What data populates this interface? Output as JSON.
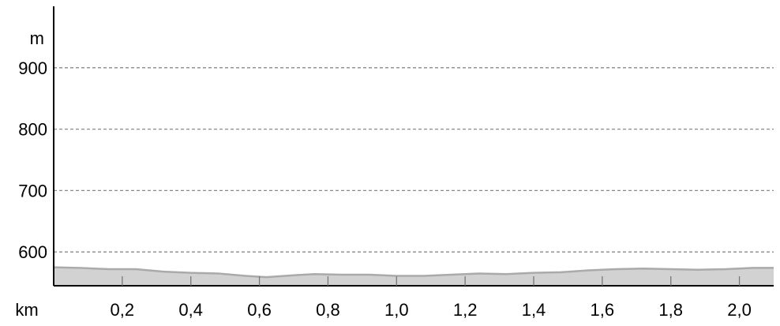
{
  "chart_data": {
    "type": "area",
    "title": "",
    "xlabel": "km",
    "ylabel": "m",
    "xlim": [
      0,
      2.1
    ],
    "ylim": [
      545,
      1000
    ],
    "x_ticks": [
      0.2,
      0.4,
      0.6,
      0.8,
      1.0,
      1.2,
      1.4,
      1.6,
      1.8,
      2.0
    ],
    "x_tick_labels": [
      "0,2",
      "0,4",
      "0,6",
      "0,8",
      "1,0",
      "1,2",
      "1,4",
      "1,6",
      "1,8",
      "2,0"
    ],
    "y_ticks": [
      600,
      700,
      800,
      900
    ],
    "y_tick_labels": [
      "600",
      "700",
      "800",
      "900"
    ],
    "grid": "horizontal-dashed",
    "series": [
      {
        "x": [
          0,
          0.08,
          0.16,
          0.24,
          0.32,
          0.4,
          0.48,
          0.56,
          0.62,
          0.7,
          0.76,
          0.84,
          0.92,
          1.0,
          1.08,
          1.16,
          1.24,
          1.32,
          1.4,
          1.48,
          1.56,
          1.64,
          1.72,
          1.8,
          1.88,
          1.96,
          2.04,
          2.1
        ],
        "y": [
          575,
          574,
          572,
          572,
          568,
          566,
          565,
          561,
          559,
          562,
          564,
          563,
          563,
          561,
          561,
          563,
          565,
          564,
          566,
          567,
          570,
          572,
          573,
          572,
          571,
          572,
          574,
          574
        ],
        "color": "#aaaaaa",
        "fill": "#d2d2d2"
      }
    ]
  }
}
